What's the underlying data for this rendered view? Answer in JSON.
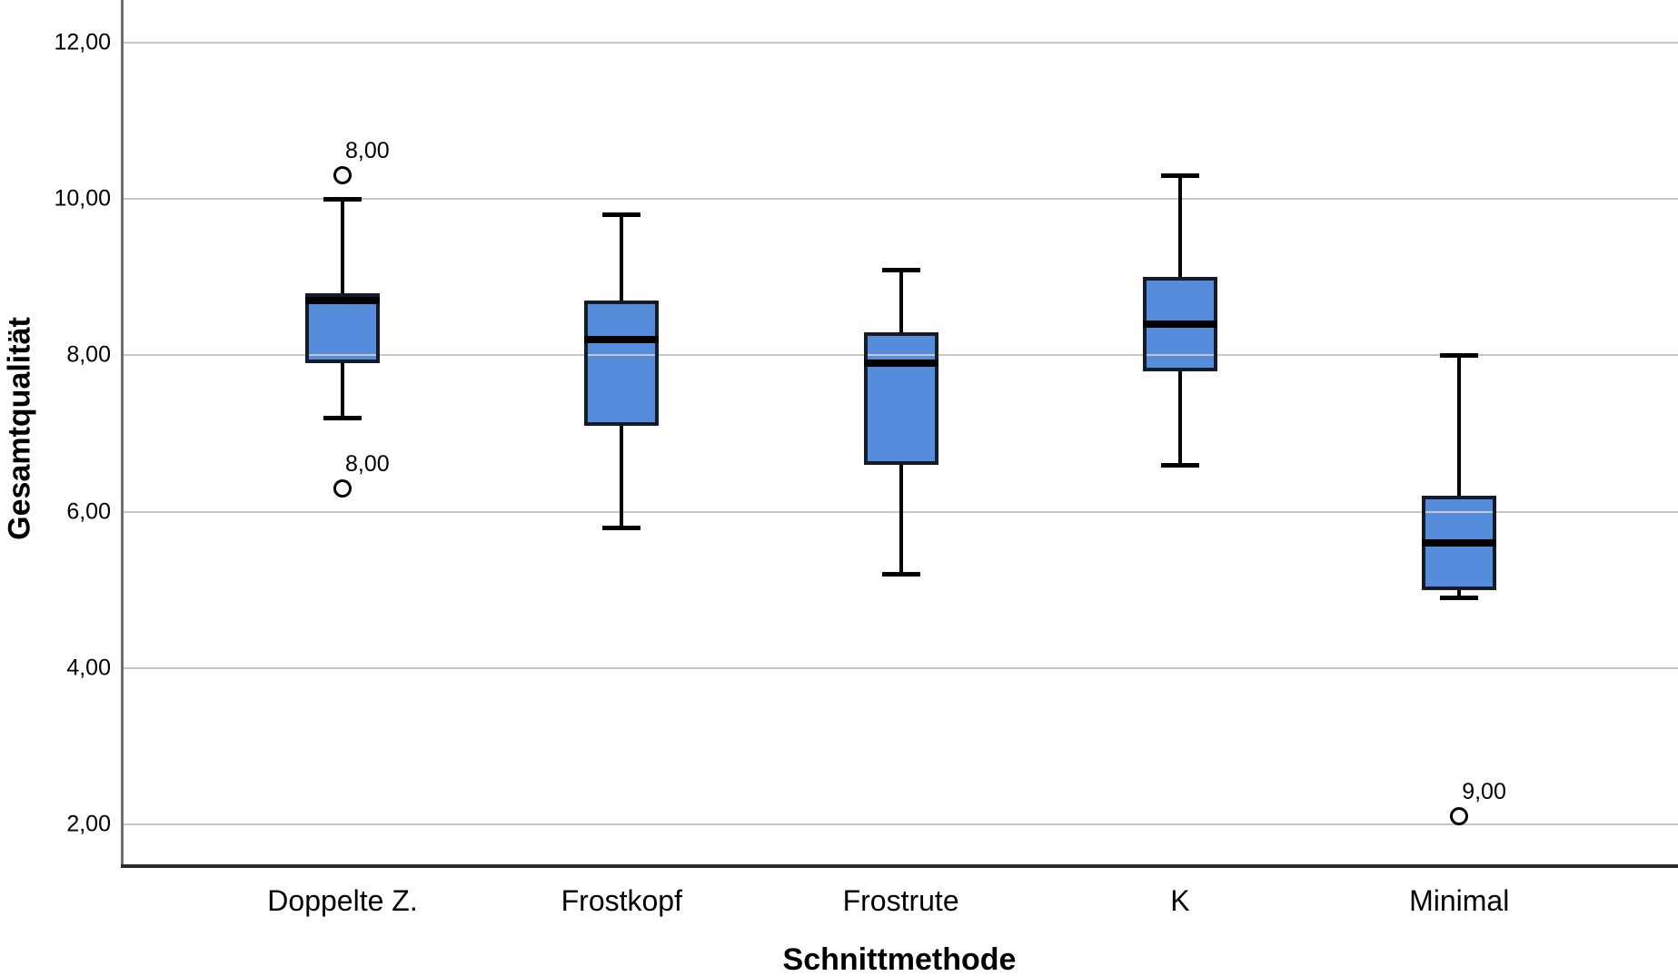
{
  "chart_data": {
    "type": "boxplot",
    "title": "",
    "xlabel": "Schnittmethode",
    "ylabel": "Gesamtqualität",
    "y_axis": {
      "min_value": 1.45,
      "max_value": 12.5,
      "ticks": [
        2,
        4,
        6,
        8,
        10,
        12
      ],
      "tick_labels": [
        "2,00",
        "4,00",
        "6,00",
        "8,00",
        "10,00",
        "12,00"
      ],
      "grid": true
    },
    "categories": [
      "Doppelte Z.",
      "Frostkopf",
      "Frostrute",
      "K",
      "Minimal"
    ],
    "series": [
      {
        "category": "Doppelte Z.",
        "whisker_low": 7.2,
        "q1": 7.9,
        "median": 8.7,
        "q3": 8.8,
        "whisker_high": 10.0,
        "outliers": [
          {
            "value": 10.3,
            "label": "8,00"
          },
          {
            "value": 6.3,
            "label": "8,00"
          }
        ]
      },
      {
        "category": "Frostkopf",
        "whisker_low": 5.8,
        "q1": 7.1,
        "median": 8.2,
        "q3": 8.7,
        "whisker_high": 9.8,
        "outliers": []
      },
      {
        "category": "Frostrute",
        "whisker_low": 5.2,
        "q1": 6.6,
        "median": 7.9,
        "q3": 8.3,
        "whisker_high": 9.1,
        "outliers": []
      },
      {
        "category": "K",
        "whisker_low": 6.6,
        "q1": 7.8,
        "median": 8.4,
        "q3": 9.0,
        "whisker_high": 10.3,
        "outliers": []
      },
      {
        "category": "Minimal",
        "whisker_low": 4.9,
        "q1": 5.0,
        "median": 5.6,
        "q3": 6.2,
        "whisker_high": 8.0,
        "outliers": [
          {
            "value": 2.1,
            "label": "9,00"
          }
        ]
      }
    ],
    "legend": "none",
    "colors": {
      "box_fill": "#558CDC",
      "box_border": "#151C28",
      "median": "#000000",
      "whisker": "#000000",
      "outlier_stroke": "#000000",
      "outlier_fill": "#FFFFFF",
      "gridline": "#C8C8C8",
      "y_axis_line": "#6E6E6E",
      "x_axis_line": "#2B2B2B",
      "text": "#000000",
      "background": "#FFFFFF"
    }
  }
}
